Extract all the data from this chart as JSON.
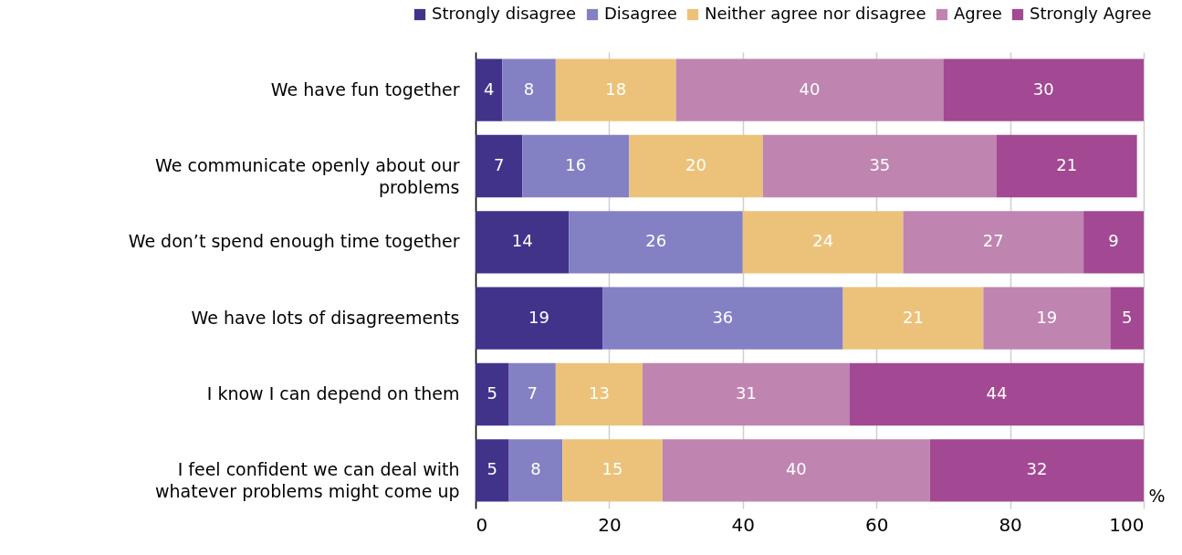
{
  "chart_data": {
    "type": "bar",
    "orientation": "horizontal",
    "stacked": true,
    "xlabel": "%",
    "categories": [
      "We have fun together",
      "We communicate openly about our problems",
      "We don’t spend enough time together",
      "We have lots of disagreements",
      "I know I can depend on them",
      "I feel confident we can deal with whatever problems might come up"
    ],
    "series": [
      {
        "name": "Strongly disagree",
        "color": "#41338a",
        "values": [
          4,
          7,
          14,
          19,
          5,
          5
        ]
      },
      {
        "name": "Disagree",
        "color": "#8480c4",
        "values": [
          8,
          16,
          26,
          36,
          7,
          8
        ]
      },
      {
        "name": "Neither agree nor disagree",
        "color": "#ecc27a",
        "values": [
          18,
          20,
          24,
          21,
          13,
          15
        ]
      },
      {
        "name": "Agree",
        "color": "#bf84b0",
        "values": [
          40,
          35,
          27,
          19,
          31,
          40
        ]
      },
      {
        "name": "Strongly Agree",
        "color": "#a34892",
        "values": [
          30,
          21,
          9,
          5,
          44,
          32
        ]
      }
    ],
    "xlim": [
      0,
      100
    ],
    "xticks": [
      0,
      20,
      40,
      60,
      80,
      100
    ],
    "grid": "x",
    "legend": "top right",
    "data_labels": true
  }
}
